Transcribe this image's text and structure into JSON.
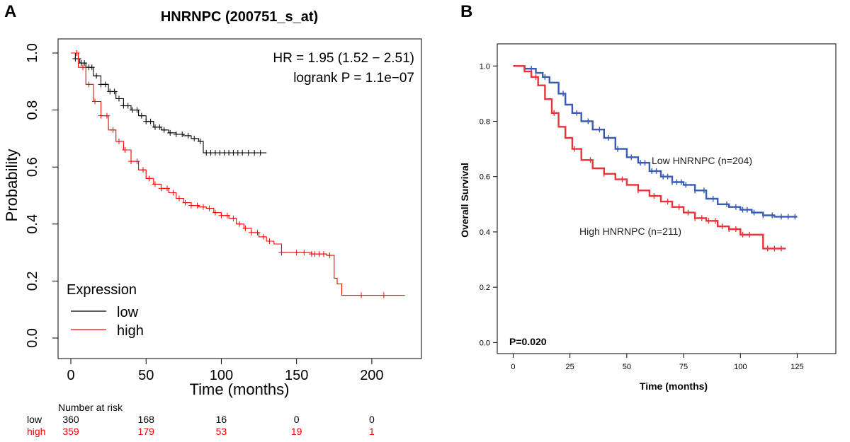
{
  "panel_labels": {
    "a": "A",
    "b": "B"
  },
  "chart_data": [
    {
      "type": "line",
      "subtype": "kaplan-meier",
      "panel": "A",
      "title": "HNRNPC (200751_s_at)",
      "xlabel": "Time (months)",
      "ylabel": "Probability",
      "xlim": [
        0,
        225
      ],
      "ylim": [
        0,
        1
      ],
      "xticks": [
        0,
        50,
        100,
        150,
        200
      ],
      "yticks": [
        0.0,
        0.2,
        0.4,
        0.6,
        0.8,
        1.0
      ],
      "ytick_labels": [
        "0.0",
        "0.2",
        "0.4",
        "0.6",
        "0.8",
        "1.0"
      ],
      "annotations": {
        "hr": "HR = 1.95 (1.52 − 2.51)",
        "pvalue": "logrank P = 1.1e−07"
      },
      "legend": {
        "title": "Expression",
        "position": "bottom-left"
      },
      "series": [
        {
          "name": "low",
          "color": "#000000",
          "x": [
            0,
            3,
            6,
            10,
            15,
            20,
            25,
            30,
            35,
            40,
            45,
            50,
            55,
            60,
            65,
            70,
            75,
            80,
            85,
            88,
            130
          ],
          "y": [
            1.0,
            0.98,
            0.965,
            0.95,
            0.92,
            0.89,
            0.865,
            0.84,
            0.815,
            0.8,
            0.78,
            0.76,
            0.74,
            0.73,
            0.72,
            0.715,
            0.71,
            0.7,
            0.69,
            0.65,
            0.65
          ],
          "censor_x": [
            3,
            5,
            7,
            9,
            12,
            14,
            17,
            20,
            23,
            26,
            29,
            32,
            35,
            38,
            41,
            44,
            47,
            50,
            53,
            56,
            59,
            62,
            66,
            70,
            74,
            78,
            82,
            86,
            90,
            93,
            96,
            99,
            102,
            105,
            108,
            111,
            114,
            118,
            122,
            126
          ]
        },
        {
          "name": "high",
          "color": "#ff0000",
          "x": [
            0,
            5,
            10,
            15,
            20,
            25,
            30,
            35,
            40,
            45,
            50,
            55,
            60,
            65,
            70,
            75,
            80,
            85,
            90,
            95,
            100,
            105,
            110,
            115,
            120,
            125,
            130,
            135,
            140,
            150,
            160,
            170,
            175,
            177,
            180,
            222
          ],
          "y": [
            1.0,
            0.95,
            0.89,
            0.83,
            0.78,
            0.73,
            0.69,
            0.66,
            0.62,
            0.59,
            0.56,
            0.54,
            0.525,
            0.51,
            0.49,
            0.475,
            0.465,
            0.46,
            0.455,
            0.44,
            0.43,
            0.42,
            0.4,
            0.385,
            0.37,
            0.355,
            0.34,
            0.33,
            0.3,
            0.3,
            0.295,
            0.29,
            0.21,
            0.19,
            0.15,
            0.15
          ],
          "censor_x": [
            4,
            8,
            12,
            16,
            20,
            24,
            28,
            32,
            36,
            40,
            44,
            48,
            52,
            56,
            60,
            64,
            68,
            72,
            76,
            80,
            84,
            88,
            92,
            96,
            100,
            104,
            108,
            112,
            116,
            120,
            124,
            128,
            132,
            140,
            150,
            155,
            160,
            162,
            165,
            168,
            172,
            193,
            208
          ]
        }
      ],
      "risk_table": {
        "title": "Number at risk",
        "times": [
          0,
          50,
          100,
          150,
          200
        ],
        "rows": [
          {
            "label": "low",
            "color": "#000000",
            "values": [
              "360",
              "168",
              "16",
              "0",
              "0"
            ]
          },
          {
            "label": "high",
            "color": "#ff0000",
            "values": [
              "359",
              "179",
              "53",
              "19",
              "1"
            ]
          }
        ]
      }
    },
    {
      "type": "line",
      "subtype": "kaplan-meier",
      "panel": "B",
      "title": "",
      "xlabel": "Time (months)",
      "ylabel": "Overall Survival",
      "xlim": [
        -7,
        142
      ],
      "ylim": [
        -0.04,
        1.08
      ],
      "xticks": [
        0,
        25,
        50,
        75,
        100,
        125
      ],
      "yticks": [
        0.0,
        0.2,
        0.4,
        0.6,
        0.8,
        1.0
      ],
      "ytick_labels": [
        "0.0",
        "0.2",
        "0.4",
        "0.6",
        "0.8",
        "1.0"
      ],
      "annotations": {
        "pvalue": "P=0.020"
      },
      "series": [
        {
          "name": "Low HNRNPC (n=204)",
          "color": "#3a5bb5",
          "x": [
            0,
            5,
            10,
            13,
            16,
            20,
            23,
            26,
            30,
            35,
            40,
            45,
            50,
            55,
            60,
            65,
            70,
            75,
            80,
            85,
            90,
            95,
            100,
            105,
            110,
            115,
            125
          ],
          "y": [
            1.0,
            0.99,
            0.975,
            0.96,
            0.94,
            0.9,
            0.86,
            0.83,
            0.8,
            0.77,
            0.74,
            0.7,
            0.67,
            0.65,
            0.62,
            0.6,
            0.58,
            0.57,
            0.55,
            0.52,
            0.5,
            0.49,
            0.48,
            0.47,
            0.46,
            0.455,
            0.455
          ],
          "censor_x": [
            8,
            14,
            22,
            28,
            33,
            38,
            42,
            46,
            52,
            56,
            58,
            61,
            63,
            66,
            68,
            70,
            72,
            74,
            76,
            80,
            84,
            88,
            94,
            98,
            101,
            103,
            106,
            110,
            114,
            118,
            121,
            124
          ]
        },
        {
          "name": "High HNRNPC (n=211)",
          "color": "#e8333a",
          "x": [
            0,
            5,
            8,
            11,
            14,
            17,
            20,
            23,
            26,
            30,
            35,
            40,
            45,
            50,
            55,
            60,
            65,
            70,
            75,
            80,
            85,
            90,
            95,
            100,
            105,
            108,
            110,
            120
          ],
          "y": [
            1.0,
            0.98,
            0.96,
            0.93,
            0.88,
            0.83,
            0.78,
            0.74,
            0.7,
            0.66,
            0.63,
            0.61,
            0.59,
            0.57,
            0.55,
            0.53,
            0.51,
            0.49,
            0.47,
            0.45,
            0.44,
            0.42,
            0.41,
            0.39,
            0.39,
            0.39,
            0.34,
            0.34
          ],
          "censor_x": [
            10,
            18,
            27,
            34,
            40,
            48,
            55,
            62,
            68,
            73,
            77,
            80,
            83,
            86,
            89,
            92,
            95,
            98,
            101,
            104,
            112,
            115,
            118
          ]
        }
      ]
    }
  ]
}
